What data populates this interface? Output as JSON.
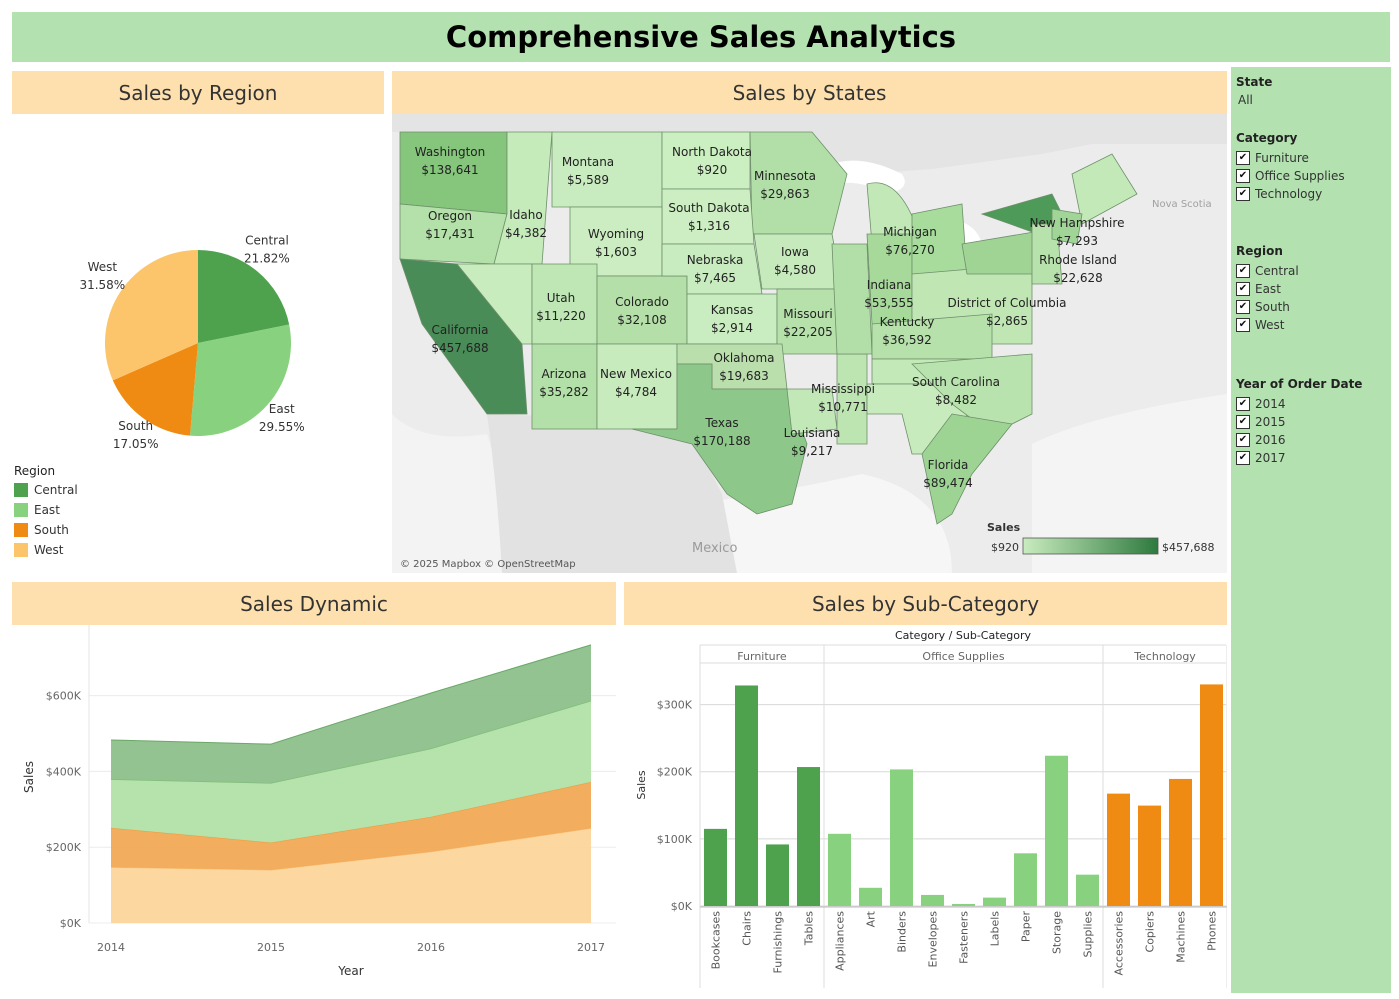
{
  "title": "Comprehensive Sales Analytics",
  "panels": {
    "region": "Sales by Region",
    "states": "Sales by States",
    "dynamic": "Sales Dynamic",
    "subcat": "Sales by Sub-Category"
  },
  "colors": {
    "Central": "#4ea24e",
    "East": "#88d17f",
    "South": "#ef8b12",
    "West": "#fcc56c"
  },
  "sidebar": {
    "state": {
      "title": "State",
      "value": "All"
    },
    "category": {
      "title": "Category",
      "items": [
        "Furniture",
        "Office Supplies",
        "Technology"
      ]
    },
    "region": {
      "title": "Region",
      "items": [
        "Central",
        "East",
        "South",
        "West"
      ]
    },
    "year": {
      "title": "Year of Order Date",
      "items": [
        "2014",
        "2015",
        "2016",
        "2017"
      ]
    },
    "check_icon": "check-icon"
  },
  "map": {
    "attribution": "© 2025 Mapbox © OpenStreetMap",
    "country_labels": [
      "Mexico",
      "Nova Scotia"
    ],
    "legend": {
      "title": "Sales",
      "min": "$920",
      "max": "$457,688"
    },
    "states": [
      {
        "name": "Washington",
        "value": "$138,641"
      },
      {
        "name": "Montana",
        "value": "$5,589"
      },
      {
        "name": "North Dakota",
        "value": "$920"
      },
      {
        "name": "Minnesota",
        "value": "$29,863"
      },
      {
        "name": "Oregon",
        "value": "$17,431"
      },
      {
        "name": "Idaho",
        "value": "$4,382"
      },
      {
        "name": "Wyoming",
        "value": "$1,603"
      },
      {
        "name": "South Dakota",
        "value": "$1,316"
      },
      {
        "name": "Michigan",
        "value": "$76,270"
      },
      {
        "name": "New Hampshire",
        "value": "$7,293"
      },
      {
        "name": "Rhode Island",
        "value": "$22,628"
      },
      {
        "name": "Iowa",
        "value": "$4,580"
      },
      {
        "name": "Nebraska",
        "value": "$7,465"
      },
      {
        "name": "Utah",
        "value": "$11,220"
      },
      {
        "name": "Colorado",
        "value": "$32,108"
      },
      {
        "name": "California",
        "value": "$457,688"
      },
      {
        "name": "Kansas",
        "value": "$2,914"
      },
      {
        "name": "Missouri",
        "value": "$22,205"
      },
      {
        "name": "Indiana",
        "value": "$53,555"
      },
      {
        "name": "District of Columbia",
        "value": "$2,865"
      },
      {
        "name": "Kentucky",
        "value": "$36,592"
      },
      {
        "name": "Oklahoma",
        "value": "$19,683"
      },
      {
        "name": "Arizona",
        "value": "$35,282"
      },
      {
        "name": "New Mexico",
        "value": "$4,784"
      },
      {
        "name": "Mississippi",
        "value": "$10,771"
      },
      {
        "name": "South Carolina",
        "value": "$8,482"
      },
      {
        "name": "Texas",
        "value": "$170,188"
      },
      {
        "name": "Louisiana",
        "value": "$9,217"
      },
      {
        "name": "Florida",
        "value": "$89,474"
      }
    ]
  },
  "chart_data": [
    {
      "type": "pie",
      "legend_title": "Region",
      "slices": [
        {
          "name": "Central",
          "value": 21.82,
          "label": "21.82%"
        },
        {
          "name": "East",
          "value": 29.55,
          "label": "29.55%"
        },
        {
          "name": "South",
          "value": 17.05,
          "label": "17.05%"
        },
        {
          "name": "West",
          "value": 31.58,
          "label": "31.58%"
        }
      ]
    },
    {
      "type": "area",
      "stacked": true,
      "xlabel": "Year",
      "ylabel": "Sales",
      "x": [
        "2014",
        "2015",
        "2016",
        "2017"
      ],
      "ylim": [
        0,
        760000
      ],
      "yticks": [
        "$0K",
        "$200K",
        "$400K",
        "$600K"
      ],
      "series": [
        {
          "name": "West",
          "values": [
            147000,
            140000,
            188000,
            250000
          ]
        },
        {
          "name": "South",
          "values": [
            104000,
            72000,
            92000,
            122000
          ]
        },
        {
          "name": "East",
          "values": [
            128000,
            157000,
            180000,
            214000
          ]
        },
        {
          "name": "Central",
          "values": [
            104000,
            103000,
            147000,
            148000
          ]
        }
      ]
    },
    {
      "type": "bar",
      "title": "Category / Sub-Category",
      "ylabel": "Sales",
      "ylim": [
        0,
        350000
      ],
      "yticks": [
        "$0K",
        "$100K",
        "$200K",
        "$300K"
      ],
      "groups": [
        {
          "name": "Furniture",
          "color": "#4ea24e",
          "categories": [
            "Bookcases",
            "Chairs",
            "Furnishings",
            "Tables"
          ],
          "values": [
            114880,
            328449,
            91705,
            206966
          ]
        },
        {
          "name": "Office Supplies",
          "color": "#88d17f",
          "categories": [
            "Appliances",
            "Art",
            "Binders",
            "Envelopes",
            "Fasteners",
            "Labels",
            "Paper",
            "Storage",
            "Supplies"
          ],
          "values": [
            107532,
            27119,
            203413,
            16476,
            3024,
            12486,
            78479,
            223844,
            46674
          ]
        },
        {
          "name": "Technology",
          "color": "#ef8b12",
          "categories": [
            "Accessories",
            "Copiers",
            "Machines",
            "Phones"
          ],
          "values": [
            167380,
            149528,
            189239,
            330007
          ]
        }
      ]
    }
  ]
}
